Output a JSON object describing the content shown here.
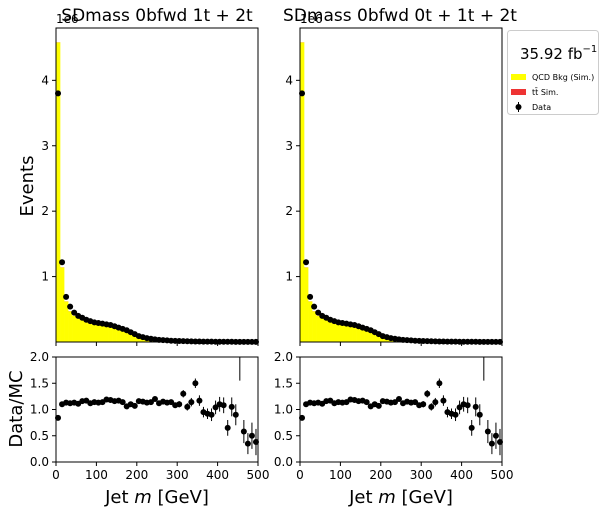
{
  "figure": {
    "ylabel_top": "Events",
    "ylabel_bottom": "Data/MC",
    "xlabel": "Jet $m$ [GeV]",
    "xlabel_plain": "Jet ",
    "xlabel_italic": "m",
    "xlabel_unit": " [GeV]",
    "exponent": "1e6",
    "lumi_value": "35.92 fb",
    "lumi_exp": "−1",
    "legend": {
      "qcd": "QCD Bkg (Sim.)",
      "ttbar": "tt̄ Sim.",
      "data": "Data"
    },
    "colors": {
      "qcd": "#ffff00",
      "ttbar": "#ee3333",
      "data": "#000000"
    }
  },
  "chart_data": [
    {
      "type": "bar",
      "title": "SDmass  0bfwd 1t + 2t",
      "xlim": [
        0,
        500
      ],
      "ylim": [
        0.0,
        4.8
      ],
      "yscale_label": "1e6",
      "yticks": [
        1,
        2,
        3,
        4
      ],
      "xticks": [
        0,
        100,
        200,
        300,
        400,
        500
      ],
      "x_bin_centers": [
        5,
        15,
        25,
        35,
        45,
        55,
        65,
        75,
        85,
        95,
        105,
        115,
        125,
        135,
        145,
        155,
        165,
        175,
        185,
        195,
        205,
        215,
        225,
        235,
        245,
        255,
        265,
        275,
        285,
        295,
        305,
        315,
        325,
        335,
        345,
        355,
        365,
        375,
        385,
        395,
        405,
        415,
        425,
        435,
        445,
        455,
        465,
        475,
        485,
        495
      ],
      "series": [
        {
          "name": "QCD Bkg (Sim.)",
          "kind": "stacked_hist",
          "values": [
            4.58,
            1.14,
            0.62,
            0.47,
            0.4,
            0.36,
            0.33,
            0.3,
            0.28,
            0.27,
            0.26,
            0.25,
            0.235,
            0.22,
            0.205,
            0.19,
            0.175,
            0.155,
            0.13,
            0.105,
            0.082,
            0.065,
            0.052,
            0.043,
            0.036,
            0.03,
            0.025,
            0.021,
            0.018,
            0.015,
            0.013,
            0.011,
            0.009,
            0.008,
            0.007,
            0.006,
            0.005,
            0.005,
            0.004,
            0.004,
            0.003,
            0.003,
            0.003,
            0.002,
            0.002,
            0.002,
            0.002,
            0.002,
            0.001,
            0.001
          ]
        },
        {
          "name": "tt̄ Sim.",
          "kind": "stacked_hist",
          "values": [
            0.002,
            0.002,
            0.002,
            0.002,
            0.002,
            0.002,
            0.002,
            0.002,
            0.002,
            0.002,
            0.002,
            0.002,
            0.002,
            0.002,
            0.002,
            0.003,
            0.003,
            0.003,
            0.003,
            0.002,
            0.002,
            0.002,
            0.002,
            0.001,
            0.001,
            0.001,
            0.001,
            0.001,
            0.001,
            0.001,
            0.001,
            0.001,
            0.001,
            0.001,
            0.001,
            0.001,
            0.001,
            0.001,
            0.001,
            0.001,
            0.001,
            0.001,
            0.001,
            0.001,
            0.001,
            0.001,
            0.001,
            0.001,
            0.001,
            0.001
          ]
        },
        {
          "name": "Data",
          "kind": "points",
          "values": [
            3.8,
            1.22,
            0.69,
            0.54,
            0.45,
            0.4,
            0.37,
            0.34,
            0.32,
            0.3,
            0.29,
            0.28,
            0.27,
            0.26,
            0.24,
            0.22,
            0.2,
            0.18,
            0.15,
            0.12,
            0.09,
            0.075,
            0.06,
            0.05,
            0.04,
            0.033,
            0.028,
            0.024,
            0.02,
            0.017,
            0.015,
            0.013,
            0.011,
            0.009,
            0.008,
            0.007,
            0.006,
            0.005,
            0.005,
            0.004,
            0.004,
            0.003,
            0.003,
            0.003,
            0.002,
            0.002,
            0.002,
            0.002,
            0.001,
            0.001
          ]
        }
      ],
      "ratio": {
        "ylim": [
          0.0,
          2.0
        ],
        "yticks": [
          0.0,
          0.5,
          1.0,
          1.5,
          2.0
        ],
        "values": [
          0.84,
          1.1,
          1.13,
          1.12,
          1.13,
          1.11,
          1.16,
          1.17,
          1.12,
          1.14,
          1.13,
          1.14,
          1.19,
          1.18,
          1.16,
          1.17,
          1.14,
          1.06,
          1.1,
          1.07,
          1.16,
          1.15,
          1.13,
          1.14,
          1.2,
          1.12,
          1.15,
          1.13,
          1.14,
          1.08,
          1.1,
          1.3,
          1.05,
          1.14,
          1.5,
          1.17,
          0.95,
          0.92,
          0.9,
          1.04,
          1.1,
          1.08,
          0.65,
          1.05,
          0.9,
          null,
          0.58,
          0.35,
          0.5,
          0.38
        ],
        "errors": [
          0.01,
          0.01,
          0.01,
          0.01,
          0.01,
          0.01,
          0.01,
          0.01,
          0.01,
          0.01,
          0.01,
          0.01,
          0.01,
          0.01,
          0.01,
          0.01,
          0.01,
          0.01,
          0.02,
          0.02,
          0.02,
          0.02,
          0.03,
          0.03,
          0.03,
          0.04,
          0.04,
          0.04,
          0.05,
          0.05,
          0.06,
          0.07,
          0.07,
          0.08,
          0.09,
          0.1,
          0.1,
          0.1,
          0.12,
          0.13,
          0.14,
          0.15,
          0.15,
          0.18,
          0.2,
          0.0,
          0.22,
          0.2,
          0.25,
          0.25
        ],
        "overflow_bin_x": 455
      }
    },
    {
      "type": "bar",
      "title": "SDmass  0bfwd 0t + 1t + 2t",
      "xlim": [
        0,
        500
      ],
      "ylim": [
        0.0,
        4.8
      ],
      "yscale_label": "1e6",
      "yticks": [
        1,
        2,
        3,
        4
      ],
      "xticks": [
        0,
        100,
        200,
        300,
        400,
        500
      ],
      "x_bin_centers": [
        5,
        15,
        25,
        35,
        45,
        55,
        65,
        75,
        85,
        95,
        105,
        115,
        125,
        135,
        145,
        155,
        165,
        175,
        185,
        195,
        205,
        215,
        225,
        235,
        245,
        255,
        265,
        275,
        285,
        295,
        305,
        315,
        325,
        335,
        345,
        355,
        365,
        375,
        385,
        395,
        405,
        415,
        425,
        435,
        445,
        455,
        465,
        475,
        485,
        495
      ],
      "series": [
        {
          "name": "QCD Bkg (Sim.)",
          "kind": "stacked_hist",
          "values": [
            4.58,
            1.14,
            0.62,
            0.47,
            0.4,
            0.36,
            0.33,
            0.3,
            0.28,
            0.27,
            0.26,
            0.25,
            0.235,
            0.22,
            0.205,
            0.19,
            0.175,
            0.155,
            0.13,
            0.105,
            0.082,
            0.065,
            0.052,
            0.043,
            0.036,
            0.03,
            0.025,
            0.021,
            0.018,
            0.015,
            0.013,
            0.011,
            0.009,
            0.008,
            0.007,
            0.006,
            0.005,
            0.005,
            0.004,
            0.004,
            0.003,
            0.003,
            0.003,
            0.002,
            0.002,
            0.002,
            0.002,
            0.002,
            0.001,
            0.001
          ]
        },
        {
          "name": "tt̄ Sim.",
          "kind": "stacked_hist",
          "values": [
            0.002,
            0.002,
            0.002,
            0.002,
            0.002,
            0.002,
            0.002,
            0.002,
            0.002,
            0.002,
            0.002,
            0.002,
            0.002,
            0.002,
            0.002,
            0.003,
            0.003,
            0.003,
            0.003,
            0.002,
            0.002,
            0.002,
            0.002,
            0.001,
            0.001,
            0.001,
            0.001,
            0.001,
            0.001,
            0.001,
            0.001,
            0.001,
            0.001,
            0.001,
            0.001,
            0.001,
            0.001,
            0.001,
            0.001,
            0.001,
            0.001,
            0.001,
            0.001,
            0.001,
            0.001,
            0.001,
            0.001,
            0.001,
            0.001,
            0.001
          ]
        },
        {
          "name": "Data",
          "kind": "points",
          "values": [
            3.8,
            1.22,
            0.69,
            0.54,
            0.45,
            0.4,
            0.37,
            0.34,
            0.32,
            0.3,
            0.29,
            0.28,
            0.27,
            0.26,
            0.24,
            0.22,
            0.2,
            0.18,
            0.15,
            0.12,
            0.09,
            0.075,
            0.06,
            0.05,
            0.04,
            0.033,
            0.028,
            0.024,
            0.02,
            0.017,
            0.015,
            0.013,
            0.011,
            0.009,
            0.008,
            0.007,
            0.006,
            0.005,
            0.005,
            0.004,
            0.004,
            0.003,
            0.003,
            0.003,
            0.002,
            0.002,
            0.002,
            0.002,
            0.001,
            0.001
          ]
        }
      ],
      "ratio": {
        "ylim": [
          0.0,
          2.0
        ],
        "yticks": [
          0.0,
          0.5,
          1.0,
          1.5,
          2.0
        ],
        "values": [
          0.84,
          1.1,
          1.13,
          1.12,
          1.13,
          1.11,
          1.16,
          1.17,
          1.12,
          1.14,
          1.13,
          1.14,
          1.19,
          1.18,
          1.16,
          1.17,
          1.14,
          1.06,
          1.1,
          1.07,
          1.16,
          1.15,
          1.13,
          1.14,
          1.2,
          1.12,
          1.15,
          1.13,
          1.14,
          1.08,
          1.1,
          1.3,
          1.05,
          1.14,
          1.5,
          1.17,
          0.95,
          0.92,
          0.9,
          1.04,
          1.1,
          1.08,
          0.65,
          1.05,
          0.9,
          null,
          0.58,
          0.35,
          0.5,
          0.38
        ],
        "errors": [
          0.01,
          0.01,
          0.01,
          0.01,
          0.01,
          0.01,
          0.01,
          0.01,
          0.01,
          0.01,
          0.01,
          0.01,
          0.01,
          0.01,
          0.01,
          0.01,
          0.01,
          0.01,
          0.02,
          0.02,
          0.02,
          0.02,
          0.03,
          0.03,
          0.03,
          0.04,
          0.04,
          0.04,
          0.05,
          0.05,
          0.06,
          0.07,
          0.07,
          0.08,
          0.09,
          0.1,
          0.1,
          0.1,
          0.12,
          0.13,
          0.14,
          0.15,
          0.15,
          0.18,
          0.2,
          0.0,
          0.22,
          0.2,
          0.25,
          0.25
        ],
        "overflow_bin_x": 455
      }
    }
  ]
}
